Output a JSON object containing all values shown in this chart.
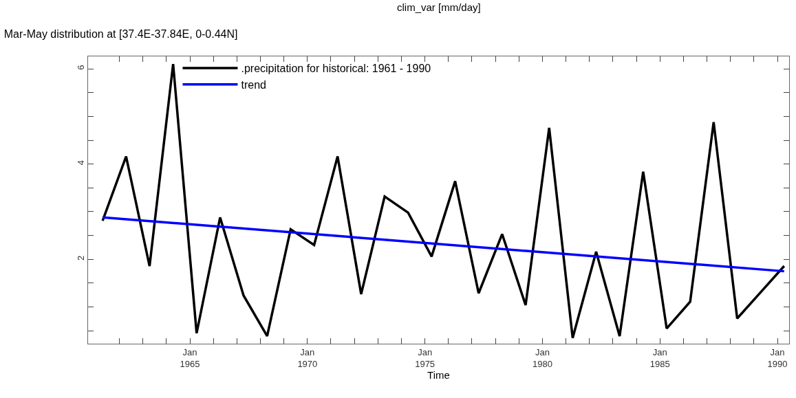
{
  "chart_data": {
    "type": "line",
    "title": "Mar-May distribution at [37.4E-37.84E, 0-0.44N]",
    "xlabel": "Time",
    "annotations": [
      "clim_var [mm/day]"
    ],
    "x": [
      "1961-04-15",
      "1962-04-15",
      "1963-04-15",
      "1964-04-15",
      "1965-04-15",
      "1966-04-15",
      "1967-04-15",
      "1968-04-15",
      "1969-04-15",
      "1970-04-15",
      "1971-04-15",
      "1972-04-15",
      "1973-04-15",
      "1974-04-15",
      "1975-04-15",
      "1976-04-15",
      "1977-04-15",
      "1978-04-15",
      "1979-04-15",
      "1980-04-15",
      "1981-04-15",
      "1982-04-15",
      "1983-04-15",
      "1984-04-15",
      "1985-04-15",
      "1986-04-15",
      "1987-04-15",
      "1988-04-15",
      "1989-04-15",
      "1990-04-15"
    ],
    "series": [
      {
        "name": ".precipitation for historical: 1961 - 1990",
        "color": "#000000",
        "values": [
          2.81,
          4.16,
          1.86,
          6.1,
          0.45,
          2.88,
          1.24,
          0.39,
          2.63,
          2.3,
          4.16,
          1.27,
          3.32,
          2.98,
          2.06,
          3.64,
          1.29,
          2.53,
          1.04,
          4.76,
          0.35,
          2.16,
          0.39,
          3.84,
          0.55,
          1.11,
          4.88,
          0.76,
          1.31,
          1.86
        ]
      },
      {
        "name": "trend",
        "color": "#0000ff",
        "x": [
          "1961-04-15",
          "1990-04-15"
        ],
        "values": [
          2.88,
          1.75
        ]
      }
    ],
    "xlim": [
      "1960-09-01",
      "1990-07-01"
    ],
    "xticks": [
      {
        "value": "1962-01-01",
        "label": null
      },
      {
        "value": "1963-01-01",
        "label": null
      },
      {
        "value": "1964-01-01",
        "label": null
      },
      {
        "value": "1965-01-01",
        "label": "Jan\n1965"
      },
      {
        "value": "1966-01-01",
        "label": null
      },
      {
        "value": "1967-01-01",
        "label": null
      },
      {
        "value": "1968-01-01",
        "label": null
      },
      {
        "value": "1969-01-01",
        "label": null
      },
      {
        "value": "1970-01-01",
        "label": "Jan\n1970"
      },
      {
        "value": "1971-01-01",
        "label": null
      },
      {
        "value": "1972-01-01",
        "label": null
      },
      {
        "value": "1973-01-01",
        "label": null
      },
      {
        "value": "1974-01-01",
        "label": null
      },
      {
        "value": "1975-01-01",
        "label": "Jan\n1975"
      },
      {
        "value": "1976-01-01",
        "label": null
      },
      {
        "value": "1977-01-01",
        "label": null
      },
      {
        "value": "1978-01-01",
        "label": null
      },
      {
        "value": "1979-01-01",
        "label": null
      },
      {
        "value": "1980-01-01",
        "label": "Jan\n1980"
      },
      {
        "value": "1981-01-01",
        "label": null
      },
      {
        "value": "1982-01-01",
        "label": null
      },
      {
        "value": "1983-01-01",
        "label": null
      },
      {
        "value": "1984-01-01",
        "label": null
      },
      {
        "value": "1985-01-01",
        "label": "Jan\n1985"
      },
      {
        "value": "1986-01-01",
        "label": null
      },
      {
        "value": "1987-01-01",
        "label": null
      },
      {
        "value": "1988-01-01",
        "label": null
      },
      {
        "value": "1989-01-01",
        "label": null
      },
      {
        "value": "1990-01-01",
        "label": "Jan\n1990"
      }
    ],
    "ylim": [
      0.23,
      6.26
    ],
    "yticks": [
      {
        "value": 0.5,
        "label": null
      },
      {
        "value": 1,
        "label": null
      },
      {
        "value": 1.5,
        "label": null
      },
      2,
      {
        "value": 2.5,
        "label": null
      },
      {
        "value": 3,
        "label": null
      },
      {
        "value": 3.5,
        "label": null
      },
      4,
      {
        "value": 4.5,
        "label": null
      },
      {
        "value": 5,
        "label": null
      },
      {
        "value": 5.5,
        "label": null
      },
      6
    ],
    "grid": false,
    "legend": "top left",
    "marker": "none",
    "line_style": "solid"
  }
}
